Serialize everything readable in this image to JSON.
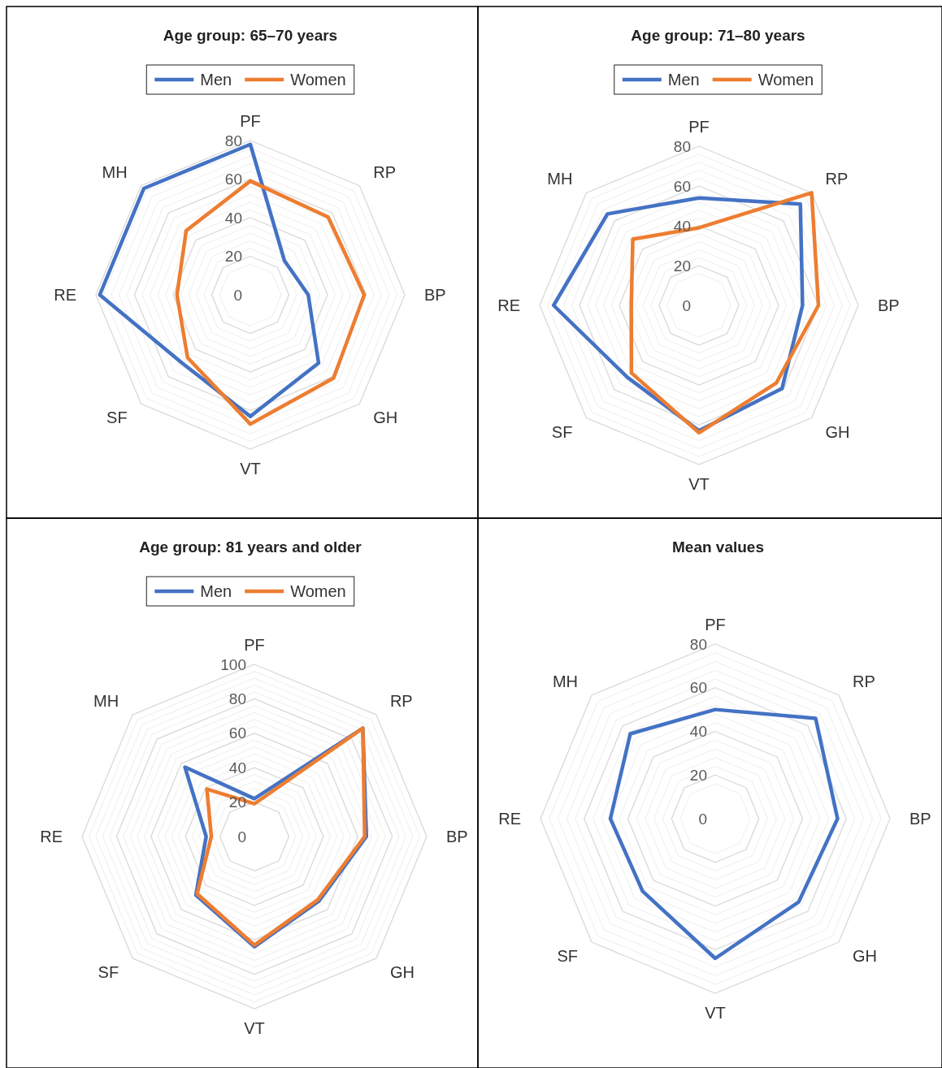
{
  "chart_data": [
    {
      "type": "radar",
      "title": "Age group: 65–70 years",
      "categories": [
        "PF",
        "RP",
        "BP",
        "GH",
        "VT",
        "SF",
        "RE",
        "MH"
      ],
      "ylim": [
        0,
        80
      ],
      "yticks": [
        0,
        20,
        40,
        60,
        80
      ],
      "grid": true,
      "legend": "top",
      "series": [
        {
          "name": "Men",
          "color": "#4472c4",
          "values": [
            78,
            25,
            30,
            50,
            63,
            50,
            78,
            78
          ]
        },
        {
          "name": "Women",
          "color": "#ed7d31",
          "values": [
            59,
            57,
            59,
            61,
            67,
            46,
            38,
            47
          ]
        }
      ]
    },
    {
      "type": "radar",
      "title": "Age group: 71–80 years",
      "categories": [
        "PF",
        "RP",
        "BP",
        "GH",
        "VT",
        "SF",
        "RE",
        "MH"
      ],
      "ylim": [
        0,
        80
      ],
      "yticks": [
        0,
        20,
        40,
        60,
        80
      ],
      "grid": true,
      "legend": "top",
      "series": [
        {
          "name": "Men",
          "color": "#4472c4",
          "values": [
            54,
            72,
            52,
            59,
            63,
            51,
            73,
            65
          ]
        },
        {
          "name": "Women",
          "color": "#ed7d31",
          "values": [
            39,
            80,
            60,
            55,
            64,
            48,
            34,
            47
          ]
        }
      ]
    },
    {
      "type": "radar",
      "title": "Age group: 81 years and older",
      "categories": [
        "PF",
        "RP",
        "BP",
        "GH",
        "VT",
        "SF",
        "RE",
        "MH"
      ],
      "ylim": [
        0,
        100
      ],
      "yticks": [
        0,
        20,
        40,
        60,
        80,
        100
      ],
      "grid": true,
      "legend": "top",
      "series": [
        {
          "name": "Men",
          "color": "#4472c4",
          "values": [
            22,
            89,
            65,
            53,
            64,
            48,
            28,
            57
          ]
        },
        {
          "name": "Women",
          "color": "#ed7d31",
          "values": [
            19,
            89,
            64,
            52,
            63,
            47,
            25,
            39
          ]
        }
      ]
    },
    {
      "type": "radar",
      "title": "Mean values",
      "categories": [
        "PF",
        "RP",
        "BP",
        "GH",
        "VT",
        "SF",
        "RE",
        "MH"
      ],
      "ylim": [
        0,
        80
      ],
      "yticks": [
        0,
        20,
        40,
        60,
        80
      ],
      "grid": true,
      "series": [
        {
          "color": "#4472c4",
          "values": [
            50,
            65,
            56,
            54,
            64,
            47,
            48,
            55
          ]
        }
      ]
    }
  ]
}
